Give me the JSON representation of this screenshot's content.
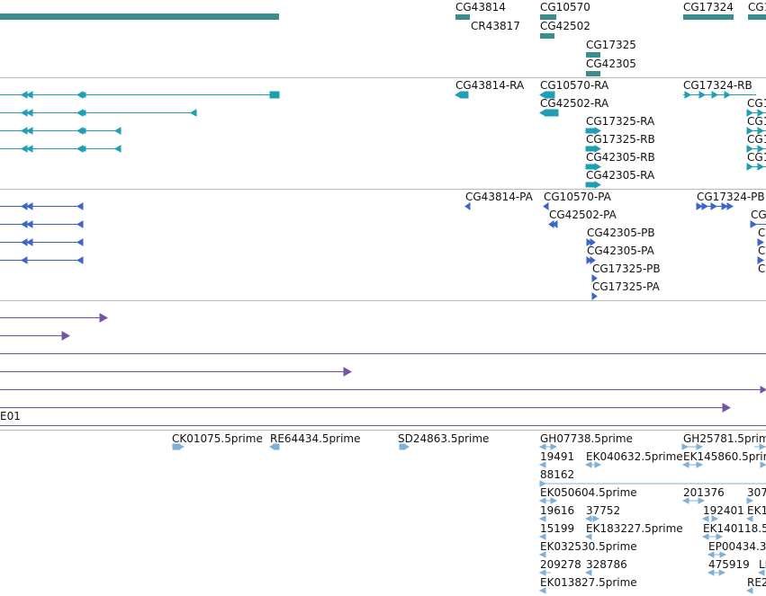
{
  "colors": {
    "gene": "#3a8f8c",
    "transcript": "#1e9fb3",
    "protein": "#3d64c9",
    "purple": "#7553a6",
    "est": "#7fb0d8"
  },
  "gene_labels": [
    "CG43814",
    "CG10570",
    "CG17324",
    "CG1",
    "CR43817",
    "CG42502",
    "CG17325",
    "CG42305"
  ],
  "transcript_labels": [
    "CG43814-RA",
    "CG10570-RA",
    "CG17324-RB",
    "CG42502-RA",
    "CG17325-RA",
    "CG17325-RB",
    "CG42305-RB",
    "CG42305-RA",
    "CG1",
    "CG1",
    "CG1",
    "CG1"
  ],
  "protein_labels": [
    "CG43814-PA",
    "CG10570-PA",
    "CG17324-PB",
    "CG42502-PA",
    "CG",
    "CG42305-PB",
    "CG42305-PA",
    "CG17325-PB",
    "CG17325-PA",
    "C",
    "C",
    "C"
  ],
  "other_labels": [
    "E01"
  ],
  "est_labels": [
    "CK01075.5prime",
    "RE64434.5prime",
    "SD24863.5prime",
    "GH07738.5prime",
    "GH25781.5prim",
    "19491",
    "EK040632.5prime",
    "EK145860.5prim",
    "88162",
    "EK050604.5prime",
    "201376",
    "307",
    "19616",
    "37752",
    "192401",
    "EK1",
    "15199",
    "EK183227.5prime",
    "EK140118.5",
    "EK032530.5prime",
    "EP00434.3",
    "209278",
    "328786",
    "475919",
    "LI",
    "EK013827.5prime",
    "RE2"
  ]
}
